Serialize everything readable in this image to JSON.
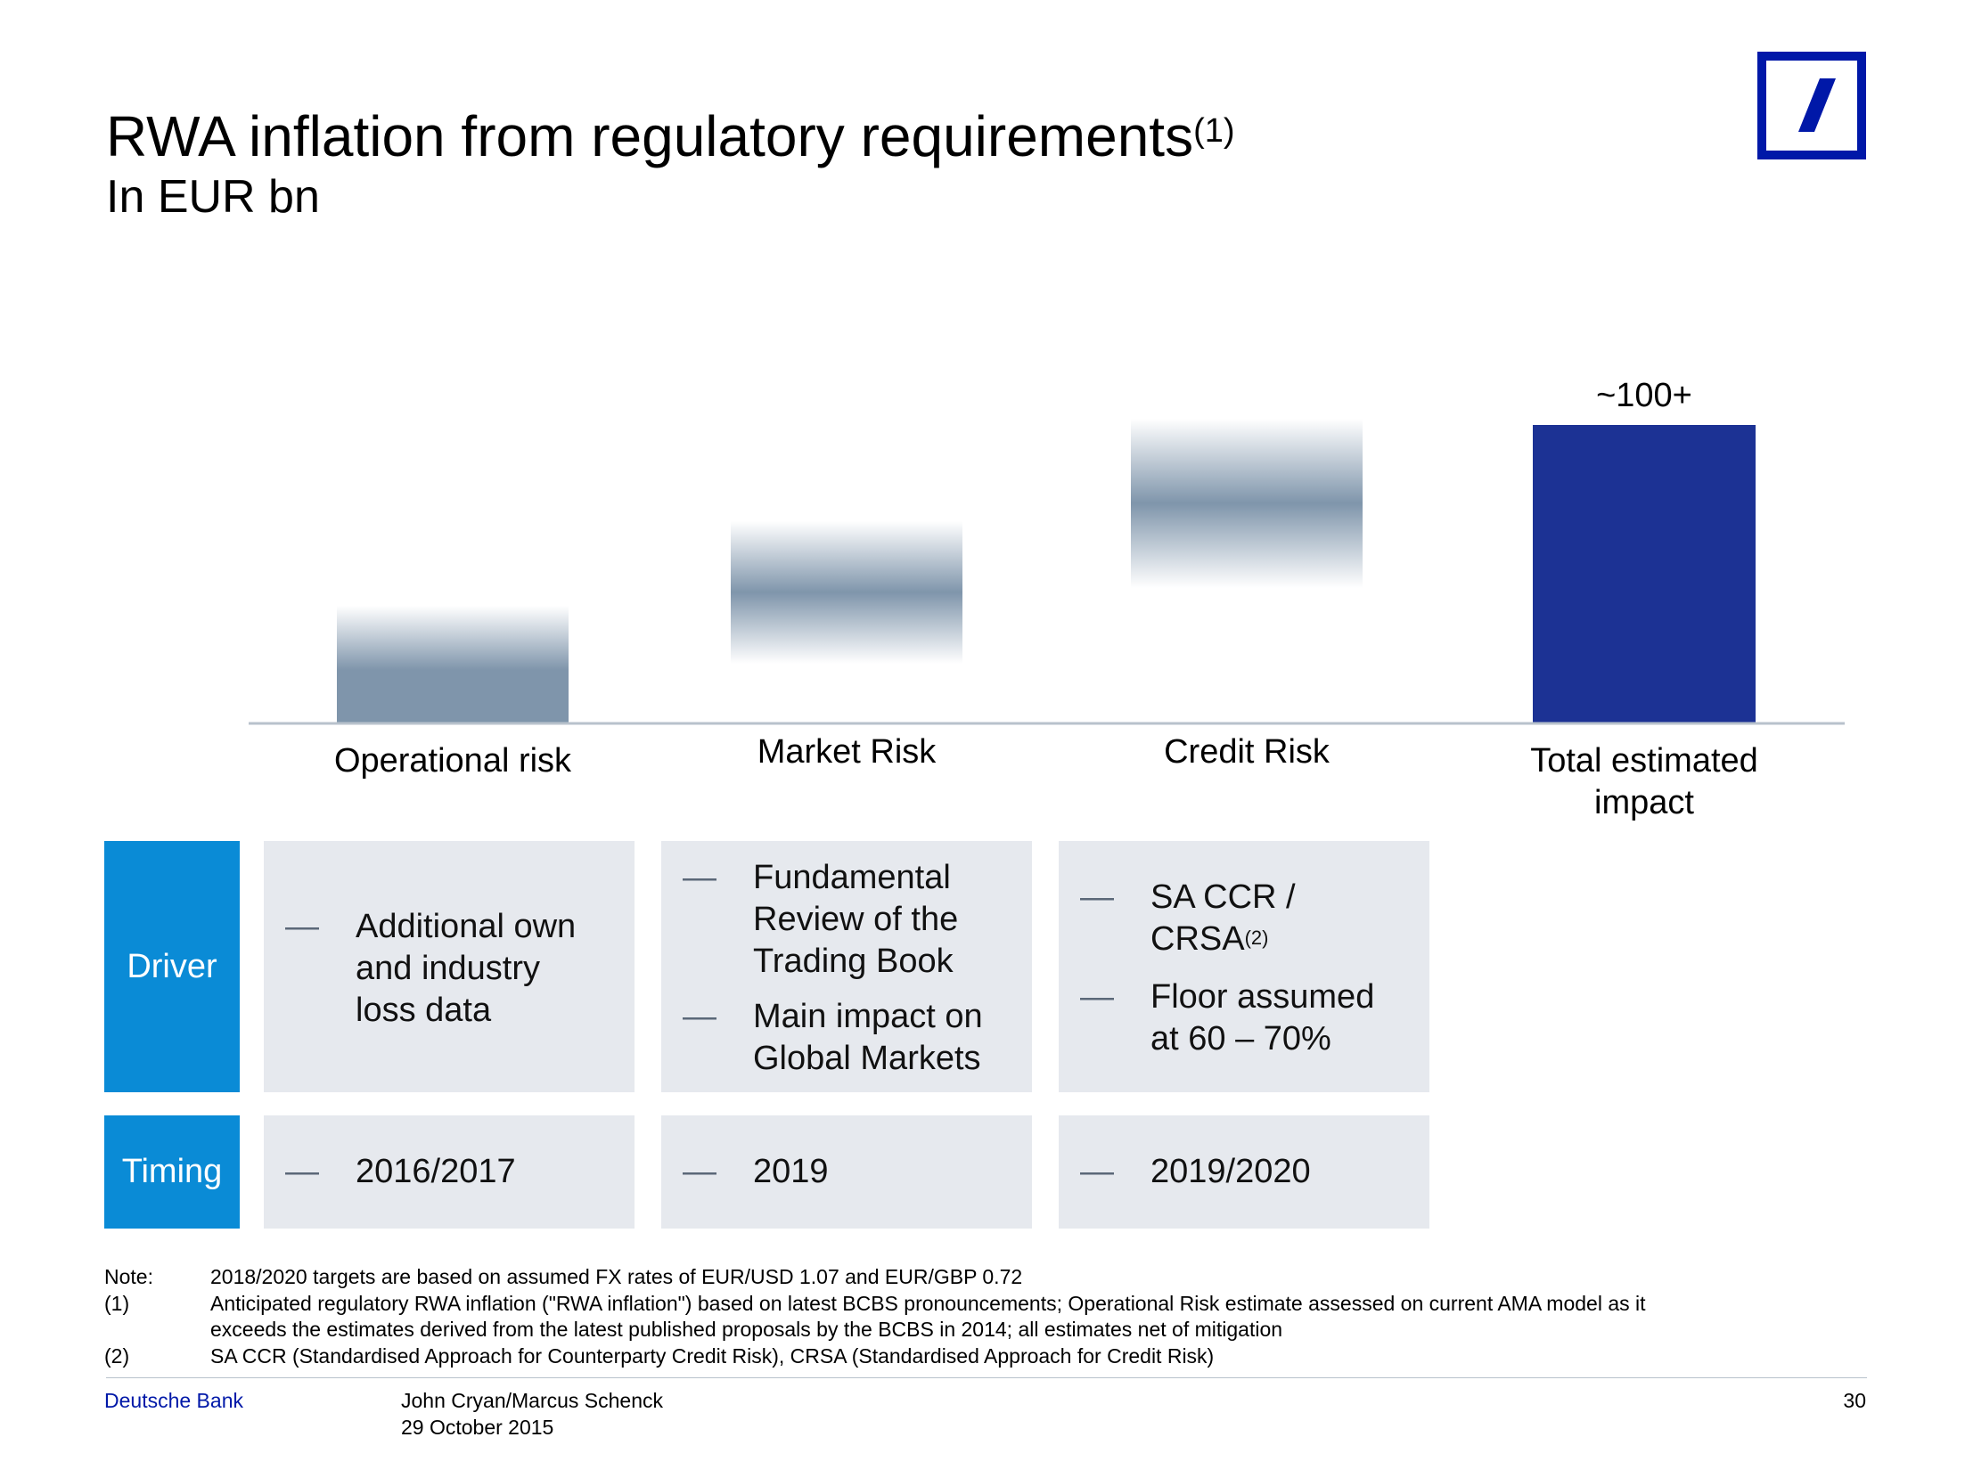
{
  "header": {
    "title": "RWA inflation from regulatory requirements",
    "title_sup": "(1)",
    "subtitle": "In EUR bn"
  },
  "logo": {
    "icon": "deutsche-bank-logo-icon",
    "color": "#0018a8"
  },
  "chart_data": {
    "type": "bar",
    "title": "RWA inflation from regulatory requirements",
    "subtitle": "In EUR bn",
    "categories": [
      "Operational risk",
      "Market Risk",
      "Credit Risk",
      "Total estimated impact"
    ],
    "total_label": "~100+",
    "colors": {
      "components": "#7f95ab",
      "total": "#1c3294",
      "axis": "#b8c2cc"
    }
  },
  "table": {
    "driver_label": "Driver",
    "timing_label": "Timing",
    "dash": "—",
    "drivers": [
      {
        "items": [
          {
            "text": "Additional own and industry loss data"
          }
        ]
      },
      {
        "items": [
          {
            "text": "Fundamental Review of the Trading Book"
          },
          {
            "text": "Main impact on Global Markets"
          }
        ]
      },
      {
        "items": [
          {
            "text": "SA CCR / CRSA",
            "sup": "(2)"
          },
          {
            "text": "Floor assumed at 60 – 70%"
          }
        ]
      }
    ],
    "timing": [
      "2016/2017",
      "2019",
      "2019/2020"
    ],
    "colors": {
      "header": "#0a8bd6",
      "cell": "#e6e9ee"
    }
  },
  "notes": {
    "note_label": "Note:",
    "note_text": "2018/2020 targets are based on assumed FX rates of EUR/USD 1.07 and EUR/GBP 0.72",
    "fn1_label": "(1)",
    "fn1_text_line1": "Anticipated regulatory RWA inflation (\"RWA inflation\") based on latest BCBS pronouncements; Operational Risk estimate assessed on current AMA model as it",
    "fn1_text_line2": "exceeds the estimates derived from the latest published proposals by the BCBS in 2014; all estimates net of mitigation",
    "fn2_label": "(2)",
    "fn2_text": "SA CCR (Standardised Approach for Counterparty Credit Risk), CRSA (Standardised Approach for Credit Risk)"
  },
  "footer": {
    "brand": "Deutsche Bank",
    "brand_color": "#0018a8",
    "authors": "John Cryan/Marcus Schenck",
    "date": "29 October 2015",
    "page": "30"
  }
}
